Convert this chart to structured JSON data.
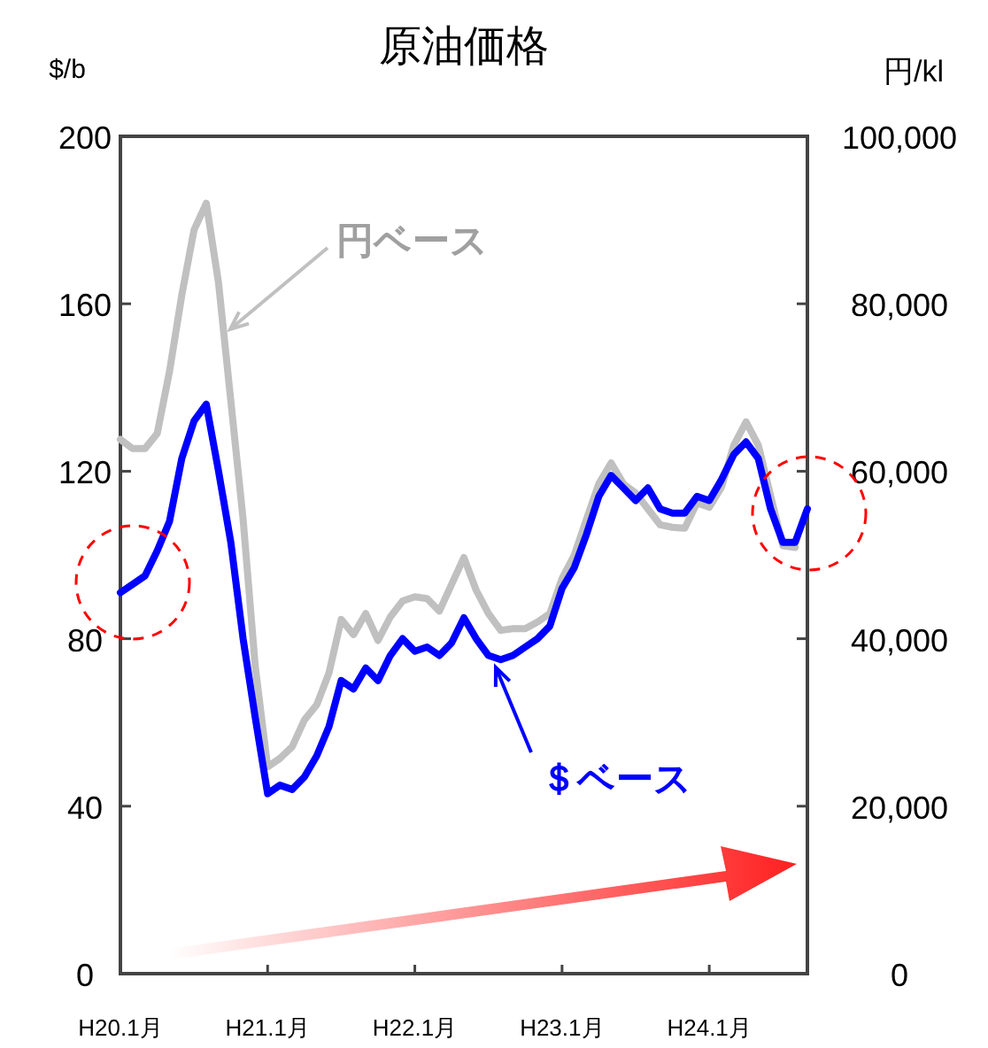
{
  "chart_data": {
    "type": "line",
    "title": "原油価格",
    "ylabel": "$/b",
    "y2label": "円/kl",
    "categories": [
      "H20.1月",
      null,
      null,
      null,
      null,
      null,
      null,
      null,
      null,
      null,
      null,
      null,
      "H21.1月",
      null,
      null,
      null,
      null,
      null,
      null,
      null,
      null,
      null,
      null,
      null,
      "H22.1月",
      null,
      null,
      null,
      null,
      null,
      null,
      null,
      null,
      null,
      null,
      null,
      "H23.1月",
      null,
      null,
      null,
      null,
      null,
      null,
      null,
      null,
      null,
      null,
      null,
      "H24.1月",
      null,
      null,
      null,
      null,
      null,
      null,
      null,
      null
    ],
    "ylim": [
      0,
      200
    ],
    "yticks": [
      0,
      40,
      80,
      120,
      160,
      200
    ],
    "y2lim": [
      0,
      100000
    ],
    "y2ticks": [
      {
        "value": 0,
        "label": "0"
      },
      {
        "value": 20000,
        "label": "20,000"
      },
      {
        "value": 40000,
        "label": "40,000"
      },
      {
        "value": 60000,
        "label": "60,000"
      },
      {
        "value": 80000,
        "label": "80,000"
      },
      {
        "value": 100000,
        "label": "100,000"
      }
    ],
    "grid": false,
    "marker": "none",
    "line_style": "solid",
    "series": [
      {
        "name": "円ベース",
        "color": "#c0c0c0",
        "axis": "y2",
        "values": [
          63800,
          62700,
          62700,
          64500,
          71900,
          81000,
          88800,
          92000,
          82500,
          68400,
          54300,
          36600,
          24700,
          25700,
          27100,
          30300,
          32100,
          35900,
          42300,
          40500,
          43000,
          39800,
          42600,
          44500,
          45000,
          44800,
          43300,
          46500,
          49700,
          45800,
          43000,
          41000,
          41200,
          41200,
          42000,
          43000,
          47200,
          50000,
          54300,
          58500,
          61000,
          58500,
          57400,
          55500,
          53600,
          53300,
          53200,
          56200,
          55700,
          58100,
          63100,
          65900,
          63100,
          57100,
          51100,
          50900,
          null
        ]
      },
      {
        "name": "＄ベース",
        "color": "#0000ff",
        "axis": "y",
        "values": [
          91,
          93,
          95,
          101,
          108,
          123,
          132,
          136,
          120,
          103,
          80,
          61,
          43,
          45,
          44,
          47,
          52,
          59,
          70,
          68,
          73,
          70,
          76,
          80,
          77,
          78,
          76,
          79,
          85,
          80,
          76,
          75,
          76,
          78,
          80,
          83,
          92,
          97,
          105,
          114,
          119,
          116,
          113,
          116,
          111,
          110,
          110,
          114,
          113,
          118,
          124,
          127,
          123,
          111,
          103,
          103,
          111
        ]
      }
    ]
  }
}
